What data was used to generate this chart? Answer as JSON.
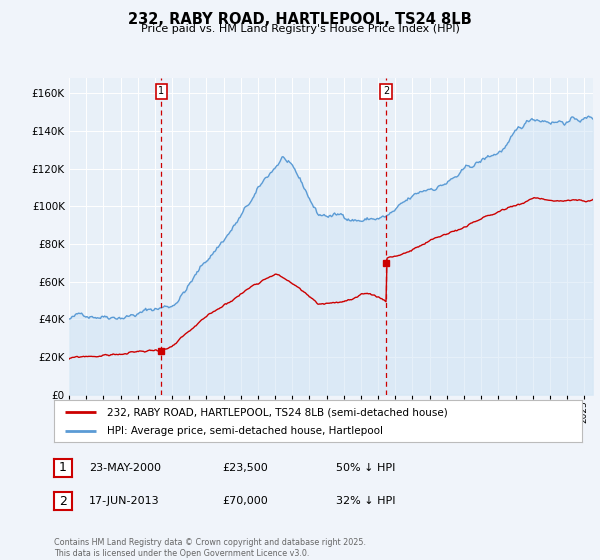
{
  "title": "232, RABY ROAD, HARTLEPOOL, TS24 8LB",
  "subtitle": "Price paid vs. HM Land Registry's House Price Index (HPI)",
  "hpi_label": "HPI: Average price, semi-detached house, Hartlepool",
  "property_label": "232, RABY ROAD, HARTLEPOOL, TS24 8LB (semi-detached house)",
  "annotation1_date": "23-MAY-2000",
  "annotation1_price": "£23,500",
  "annotation1_hpi": "50% ↓ HPI",
  "annotation1_year": 2000.38,
  "annotation1_value": 23500,
  "annotation2_date": "17-JUN-2013",
  "annotation2_price": "£70,000",
  "annotation2_hpi": "32% ↓ HPI",
  "annotation2_year": 2013.46,
  "annotation2_value": 70000,
  "ylim_min": 0,
  "ylim_max": 168000,
  "ytick_step": 20000,
  "background_color": "#f0f4fa",
  "plot_bg_color": "#e8f0f8",
  "hpi_color": "#5b9bd5",
  "hpi_fill_color": "#d0e4f5",
  "property_color": "#cc0000",
  "vline_color": "#cc0000",
  "footer_text": "Contains HM Land Registry data © Crown copyright and database right 2025.\nThis data is licensed under the Open Government Licence v3.0.",
  "xmin": 1995,
  "xmax": 2025.5
}
